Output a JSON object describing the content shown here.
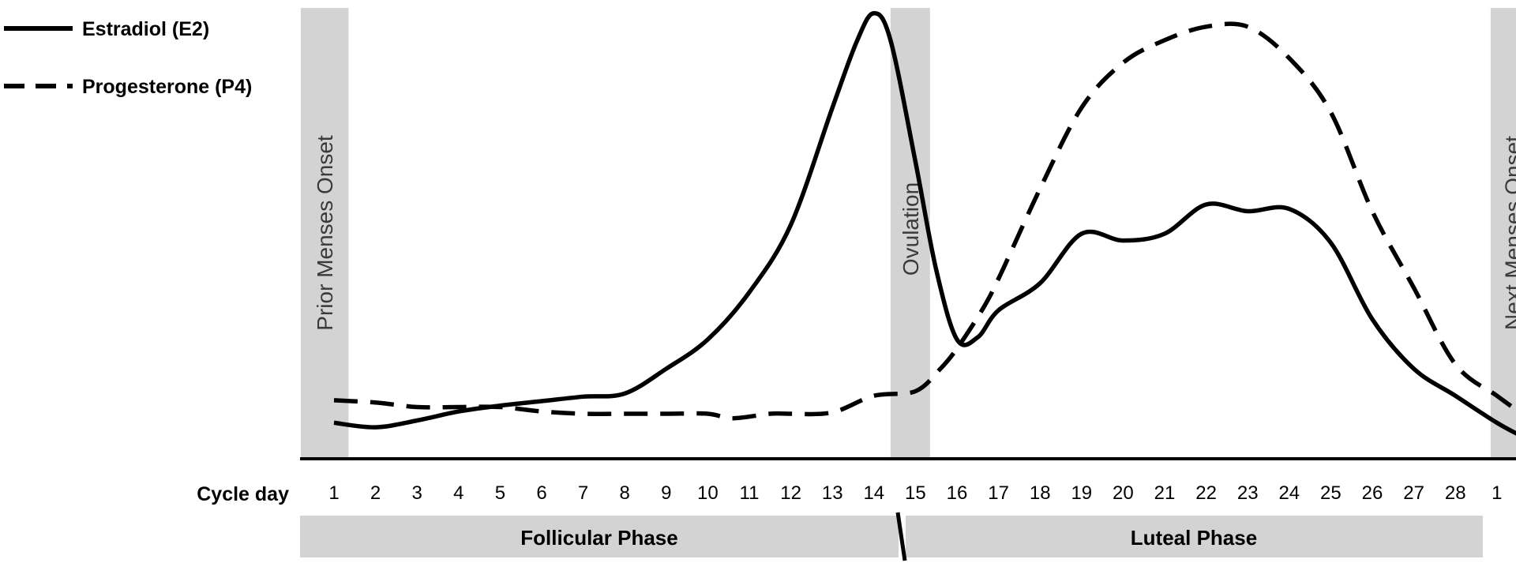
{
  "chart_data": {
    "type": "line",
    "xlabel": "Cycle day",
    "x_tick_labels": [
      "1",
      "2",
      "3",
      "4",
      "5",
      "6",
      "7",
      "8",
      "9",
      "10",
      "11",
      "12",
      "13",
      "14",
      "15",
      "16",
      "17",
      "18",
      "19",
      "20",
      "21",
      "22",
      "23",
      "24",
      "25",
      "26",
      "27",
      "28",
      "1"
    ],
    "series": [
      {
        "name": "Estradiol (E2)",
        "style": "solid",
        "points": [
          [
            0.0,
            0.08
          ],
          [
            1.0,
            0.07
          ],
          [
            2.0,
            0.085
          ],
          [
            3.0,
            0.105
          ],
          [
            4.0,
            0.118
          ],
          [
            5.0,
            0.128
          ],
          [
            6.0,
            0.138
          ],
          [
            7.0,
            0.145
          ],
          [
            8.0,
            0.2
          ],
          [
            9.0,
            0.265
          ],
          [
            10.0,
            0.37
          ],
          [
            11.0,
            0.52
          ],
          [
            12.0,
            0.78
          ],
          [
            12.6,
            0.93
          ],
          [
            13.0,
            0.99
          ],
          [
            13.4,
            0.93
          ],
          [
            14.0,
            0.66
          ],
          [
            14.5,
            0.42
          ],
          [
            15.0,
            0.265
          ],
          [
            15.5,
            0.27
          ],
          [
            16.0,
            0.33
          ],
          [
            17.0,
            0.39
          ],
          [
            18.0,
            0.5
          ],
          [
            19.0,
            0.485
          ],
          [
            20.0,
            0.5
          ],
          [
            21.0,
            0.565
          ],
          [
            22.0,
            0.55
          ],
          [
            23.0,
            0.555
          ],
          [
            24.0,
            0.48
          ],
          [
            25.0,
            0.31
          ],
          [
            26.0,
            0.2
          ],
          [
            27.0,
            0.14
          ],
          [
            28.0,
            0.08
          ],
          [
            28.6,
            0.05
          ]
        ]
      },
      {
        "name": "Progesterone (P4)",
        "style": "dashed",
        "points": [
          [
            0.0,
            0.13
          ],
          [
            1.0,
            0.125
          ],
          [
            2.0,
            0.115
          ],
          [
            3.0,
            0.115
          ],
          [
            4.0,
            0.115
          ],
          [
            5.0,
            0.105
          ],
          [
            6.0,
            0.1
          ],
          [
            7.0,
            0.1
          ],
          [
            8.0,
            0.1
          ],
          [
            9.0,
            0.1
          ],
          [
            9.6,
            0.09
          ],
          [
            10.5,
            0.1
          ],
          [
            11.0,
            0.1
          ],
          [
            12.0,
            0.103
          ],
          [
            13.0,
            0.14
          ],
          [
            14.0,
            0.15
          ],
          [
            14.6,
            0.2
          ],
          [
            15.0,
            0.245
          ],
          [
            15.6,
            0.33
          ],
          [
            16.0,
            0.4
          ],
          [
            17.0,
            0.6
          ],
          [
            18.0,
            0.78
          ],
          [
            19.0,
            0.88
          ],
          [
            20.0,
            0.93
          ],
          [
            21.0,
            0.96
          ],
          [
            22.0,
            0.96
          ],
          [
            23.0,
            0.89
          ],
          [
            24.0,
            0.77
          ],
          [
            25.0,
            0.55
          ],
          [
            26.0,
            0.38
          ],
          [
            27.0,
            0.21
          ],
          [
            28.0,
            0.14
          ],
          [
            28.6,
            0.1
          ]
        ]
      }
    ],
    "bands": [
      {
        "label": "Prior Menses Onset",
        "x_from": -0.8,
        "x_to": 0.35
      },
      {
        "label": "Ovulation",
        "x_from": 13.4,
        "x_to": 14.35
      },
      {
        "label": "Next Menses Onset",
        "x_from": 27.85,
        "x_to": 28.9
      }
    ],
    "phases": [
      {
        "label": "Follicular Phase"
      },
      {
        "label": "Luteal Phase"
      }
    ],
    "legend_position": "top-left",
    "grid": false,
    "y_axis_shown": false
  }
}
